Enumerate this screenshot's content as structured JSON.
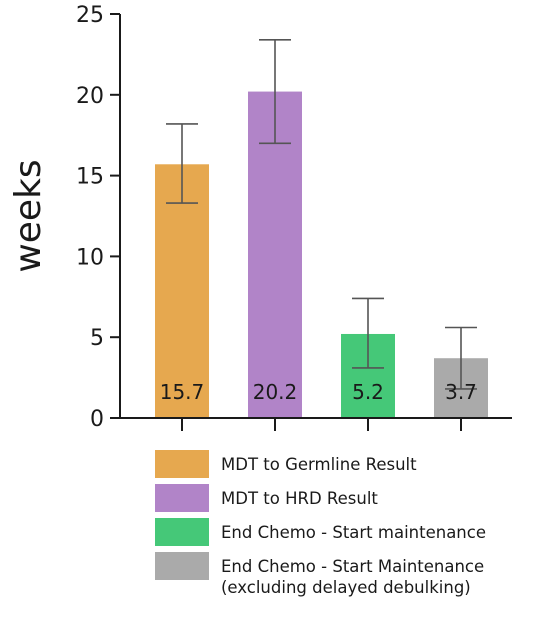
{
  "chart_data": {
    "type": "bar",
    "ylabel": "weeks",
    "ylim": [
      0,
      25
    ],
    "yticks": [
      0,
      5,
      10,
      15,
      20,
      25
    ],
    "bars": [
      {
        "name": "MDT to Germline Result",
        "value": 15.7,
        "label": "15.7",
        "error_low": 13.3,
        "error_high": 18.2,
        "color": "#e6a84f"
      },
      {
        "name": "MDT to HRD Result",
        "value": 20.2,
        "label": "20.2",
        "error_low": 17.0,
        "error_high": 23.4,
        "color": "#b184c8"
      },
      {
        "name": "End Chemo - Start maintenance",
        "value": 5.2,
        "label": "5.2",
        "error_low": 3.1,
        "error_high": 7.4,
        "color": "#45c878"
      },
      {
        "name": "End Chemo - Start Maintenance\n(excluding delayed debulking)",
        "value": 3.7,
        "label": "3.7",
        "error_low": 1.8,
        "error_high": 5.6,
        "color": "#aaaaaa"
      }
    ],
    "grid": false,
    "legend_position": "bottom"
  }
}
